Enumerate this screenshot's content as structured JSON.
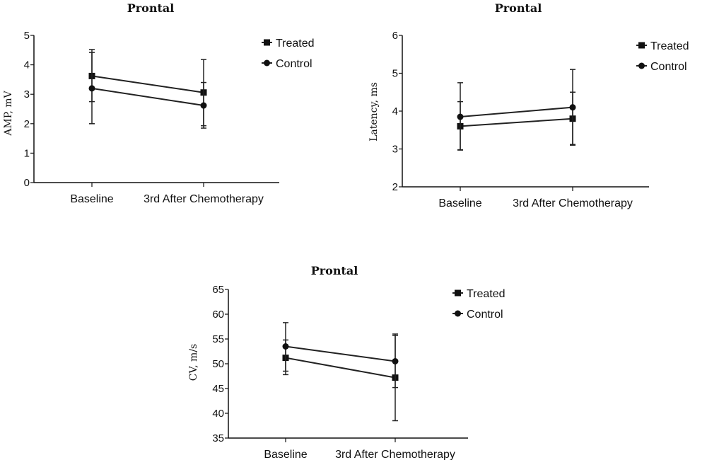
{
  "chart_data": [
    {
      "type": "line",
      "title": "Prontal",
      "xlabel": "",
      "ylabel": "AMP, mV",
      "categories": [
        "Baseline",
        "3rd After Chemotherapy"
      ],
      "ylim": [
        0,
        5
      ],
      "yticks": [
        0,
        1,
        2,
        3,
        4,
        5
      ],
      "legend_position": "top-right",
      "grid": false,
      "series": [
        {
          "name": "Treated",
          "marker": "square",
          "values": [
            3.62,
            3.06
          ],
          "error_low": [
            2.75,
            1.93
          ],
          "error_high": [
            4.52,
            4.18
          ]
        },
        {
          "name": "Control",
          "marker": "circle",
          "values": [
            3.2,
            2.62
          ],
          "error_low": [
            2.0,
            1.85
          ],
          "error_high": [
            4.42,
            3.4
          ]
        }
      ]
    },
    {
      "type": "line",
      "title": "Prontal",
      "xlabel": "",
      "ylabel": "Latency, ms",
      "categories": [
        "Baseline",
        "3rd After Chemotherapy"
      ],
      "ylim": [
        2,
        6
      ],
      "yticks": [
        2,
        3,
        4,
        5,
        6
      ],
      "legend_position": "top-right",
      "grid": false,
      "series": [
        {
          "name": "Treated",
          "marker": "square",
          "values": [
            3.6,
            3.8
          ],
          "error_low": [
            2.97,
            3.1
          ],
          "error_high": [
            4.25,
            4.5
          ]
        },
        {
          "name": "Control",
          "marker": "circle",
          "values": [
            3.85,
            4.1
          ],
          "error_low": [
            2.98,
            3.12
          ],
          "error_high": [
            4.75,
            5.1
          ]
        }
      ]
    },
    {
      "type": "line",
      "title": "Prontal",
      "xlabel": "",
      "ylabel": "CV, m/s",
      "categories": [
        "Baseline",
        "3rd After Chemotherapy"
      ],
      "ylim": [
        35,
        65
      ],
      "yticks": [
        35,
        40,
        45,
        50,
        55,
        60,
        65
      ],
      "legend_position": "top-right",
      "grid": false,
      "series": [
        {
          "name": "Treated",
          "marker": "square",
          "values": [
            51.2,
            47.2
          ],
          "error_low": [
            47.8,
            38.5
          ],
          "error_high": [
            54.8,
            55.7
          ]
        },
        {
          "name": "Control",
          "marker": "circle",
          "values": [
            53.5,
            50.5
          ],
          "error_low": [
            48.5,
            45.2
          ],
          "error_high": [
            58.3,
            56.0
          ]
        }
      ]
    }
  ]
}
